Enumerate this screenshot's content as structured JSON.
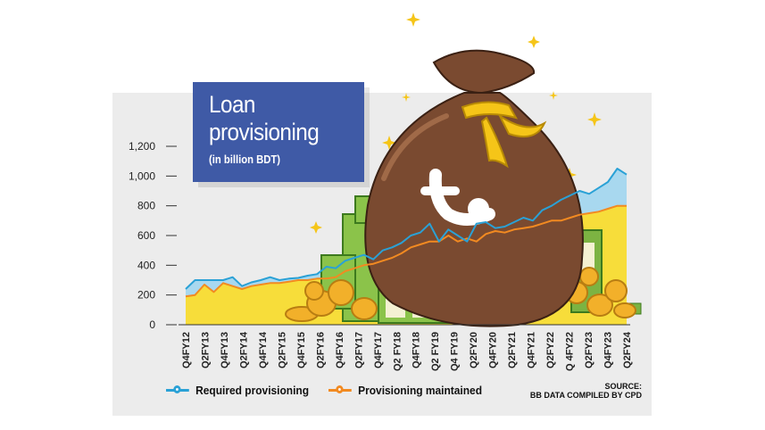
{
  "title": "Loan provisioning",
  "subtitle": "(in billion BDT)",
  "source_line1": "SOURCE:",
  "source_line2": "BB DATA COMPILED BY CPD",
  "colors": {
    "required": "#2aa1d6",
    "maintained": "#f28a21",
    "required_fill": "#a8d8ef",
    "maintained_fill": "#f7dd3a",
    "title_bg": "#3f5aa6"
  },
  "chart_data": {
    "type": "line",
    "ylim": [
      0,
      1200
    ],
    "yticks": [
      0,
      200,
      400,
      600,
      800,
      1000,
      1200
    ],
    "ytick_labels": [
      "0",
      "200",
      "400",
      "600",
      "800",
      "1,000",
      "1,200"
    ],
    "x_labels_shown": [
      "Q4FY12",
      "Q2FY13",
      "Q4FY13",
      "Q2FY14",
      "Q4FY14",
      "Q2FY15",
      "Q4FY15",
      "Q2FY16",
      "Q4FY16",
      "Q2FY17",
      "Q4FY17",
      "Q2 FY18",
      "Q4FY18",
      "Q2 FY19",
      "Q4 FY19",
      "Q2FY20",
      "Q4FY20",
      "Q2FY21",
      "Q4FY21",
      "Q2FY22",
      "Q 4FY22",
      "Q2FY23",
      "Q4FY23",
      "Q2FY24"
    ],
    "series": [
      {
        "name": "Required provisioning",
        "values": [
          240,
          300,
          300,
          300,
          300,
          320,
          260,
          285,
          300,
          320,
          300,
          310,
          315,
          330,
          340,
          390,
          380,
          430,
          450,
          470,
          440,
          500,
          520,
          550,
          600,
          620,
          680,
          560,
          640,
          600,
          560,
          680,
          690,
          650,
          660,
          690,
          720,
          700,
          770,
          800,
          840,
          870,
          900,
          880,
          920,
          960,
          1050,
          1010
        ]
      },
      {
        "name": "Provisioning maintained",
        "values": [
          190,
          200,
          270,
          220,
          280,
          260,
          240,
          260,
          270,
          280,
          280,
          290,
          300,
          300,
          310,
          310,
          320,
          360,
          380,
          400,
          410,
          430,
          450,
          480,
          520,
          540,
          560,
          560,
          600,
          560,
          580,
          560,
          610,
          630,
          620,
          640,
          650,
          660,
          680,
          700,
          700,
          720,
          740,
          750,
          760,
          780,
          800,
          800
        ]
      }
    ],
    "legend_position": "bottom"
  }
}
